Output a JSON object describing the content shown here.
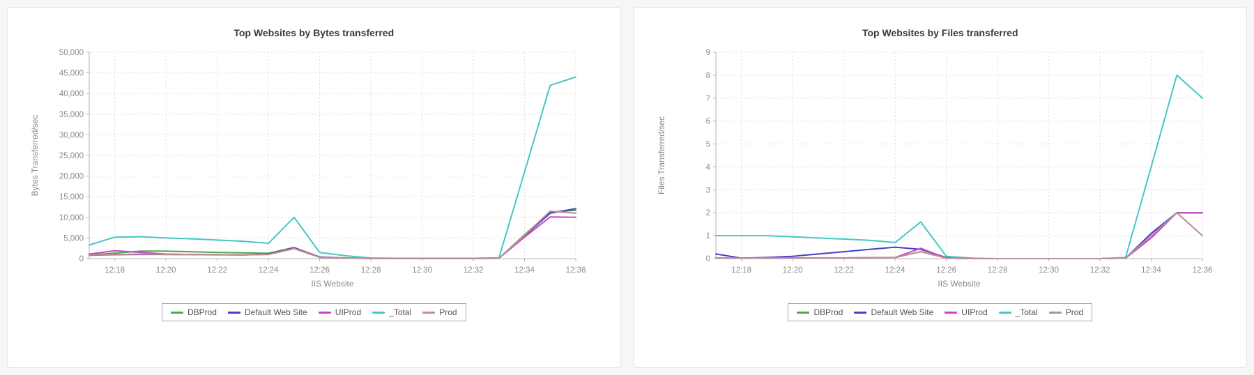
{
  "page": {
    "background": "#f6f6f6",
    "card_border": "#e2e2e2"
  },
  "chart_data": [
    {
      "type": "line",
      "title": "Top Websites by Bytes transferred",
      "xlabel": "IIS Website",
      "ylabel": "Bytes Transferred/sec",
      "ylim": [
        0,
        50000
      ],
      "ytick_step": 5000,
      "comma_ticks": true,
      "grid": "dotted",
      "legend_position": "bottom",
      "x": [
        "12:17",
        "12:18",
        "12:19",
        "12:20",
        "12:21",
        "12:22",
        "12:23",
        "12:24",
        "12:25",
        "12:26",
        "12:27",
        "12:28",
        "12:29",
        "12:30",
        "12:31",
        "12:32",
        "12:33",
        "12:34",
        "12:35",
        "12:36"
      ],
      "xtick_labels": [
        "12:18",
        "12:20",
        "12:22",
        "12:24",
        "12:26",
        "12:28",
        "12:30",
        "12:32",
        "12:34",
        "12:36"
      ],
      "series": [
        {
          "name": "DBProd",
          "color": "#4aa94a",
          "values": [
            900,
            1300,
            1800,
            1800,
            1650,
            1500,
            1400,
            1300,
            2700,
            300,
            100,
            50,
            30,
            30,
            30,
            30,
            80,
            5800,
            11300,
            11700
          ]
        },
        {
          "name": "Default Web Site",
          "color": "#4040c8",
          "values": [
            800,
            950,
            1000,
            1000,
            1000,
            950,
            900,
            1100,
            2600,
            400,
            150,
            60,
            40,
            40,
            40,
            40,
            90,
            5500,
            11000,
            12100
          ]
        },
        {
          "name": "UIProd",
          "color": "#cc44cc",
          "values": [
            1100,
            1900,
            1500,
            1100,
            1000,
            950,
            900,
            1000,
            2500,
            350,
            120,
            50,
            30,
            30,
            30,
            30,
            80,
            5200,
            10100,
            10000
          ]
        },
        {
          "name": "_Total",
          "color": "#45c6c6",
          "values": [
            3300,
            5200,
            5300,
            5000,
            4800,
            4500,
            4200,
            3700,
            10000,
            1500,
            700,
            150,
            80,
            80,
            80,
            80,
            200,
            21000,
            42000,
            44000
          ]
        },
        {
          "name": "Prod",
          "color": "#bc8f8f",
          "values": [
            850,
            1000,
            1100,
            1000,
            950,
            900,
            900,
            1000,
            2400,
            300,
            110,
            50,
            30,
            30,
            30,
            30,
            80,
            5600,
            11500,
            11000
          ]
        }
      ]
    },
    {
      "type": "line",
      "title": "Top Websites by Files transferred",
      "xlabel": "IIS Website",
      "ylabel": "Files Transferred/sec",
      "ylim": [
        0,
        9
      ],
      "ytick_step": 1,
      "comma_ticks": false,
      "grid": "dotted",
      "legend_position": "bottom",
      "x": [
        "12:17",
        "12:18",
        "12:19",
        "12:20",
        "12:21",
        "12:22",
        "12:23",
        "12:24",
        "12:25",
        "12:26",
        "12:27",
        "12:28",
        "12:29",
        "12:30",
        "12:31",
        "12:32",
        "12:33",
        "12:34",
        "12:35",
        "12:36"
      ],
      "xtick_labels": [
        "12:18",
        "12:20",
        "12:22",
        "12:24",
        "12:26",
        "12:28",
        "12:30",
        "12:32",
        "12:34",
        "12:36"
      ],
      "series": [
        {
          "name": "DBProd",
          "color": "#4aa94a",
          "values": [
            0.02,
            0.02,
            0.02,
            0.03,
            0.03,
            0.03,
            0.04,
            0.05,
            0.3,
            0.02,
            0,
            0,
            0,
            0,
            0,
            0,
            0.02,
            0.9,
            2.0,
            2.0
          ]
        },
        {
          "name": "Default Web Site",
          "color": "#4040c8",
          "values": [
            0.2,
            0.02,
            0.05,
            0.1,
            0.2,
            0.3,
            0.4,
            0.5,
            0.4,
            0.05,
            0,
            0,
            0,
            0,
            0,
            0,
            0.02,
            1.1,
            2.0,
            2.0
          ]
        },
        {
          "name": "UIProd",
          "color": "#cc44cc",
          "values": [
            0.02,
            0.02,
            0.02,
            0.02,
            0.03,
            0.03,
            0.04,
            0.05,
            0.45,
            0.02,
            0,
            0,
            0,
            0,
            0,
            0,
            0.02,
            0.9,
            2.0,
            2.0
          ]
        },
        {
          "name": "_Total",
          "color": "#45c6c6",
          "values": [
            1.0,
            1.0,
            1.0,
            0.95,
            0.9,
            0.85,
            0.8,
            0.7,
            1.6,
            0.1,
            0.02,
            0,
            0,
            0,
            0,
            0,
            0.05,
            4.0,
            8.0,
            7.0
          ]
        },
        {
          "name": "Prod",
          "color": "#bc8f8f",
          "values": [
            0.02,
            0.02,
            0.02,
            0.02,
            0.03,
            0.03,
            0.04,
            0.05,
            0.3,
            0.02,
            0,
            0,
            0,
            0,
            0,
            0,
            0.02,
            1.0,
            2.0,
            1.0
          ]
        }
      ]
    }
  ]
}
